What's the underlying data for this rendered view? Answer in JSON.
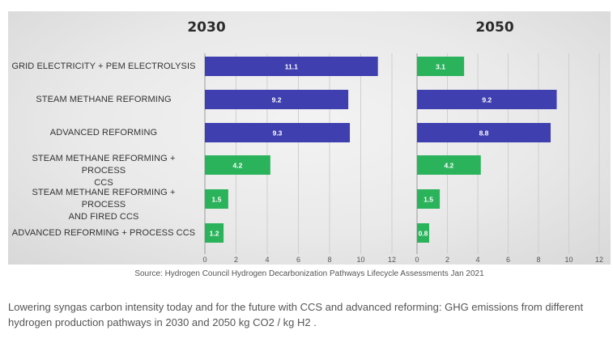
{
  "chart_data": [
    {
      "type": "bar",
      "orientation": "horizontal",
      "title": "2030",
      "categories": [
        "GRID ELECTRICITY + PEM ELECTROLYSIS",
        "STEAM METHANE REFORMING",
        "ADVANCED REFORMING",
        "STEAM METHANE REFORMING + PROCESS CCS",
        "STEAM METHANE REFORMING + PROCESS AND FIRED CCS",
        "ADVANCED REFORMING + PROCESS CCS"
      ],
      "values": [
        11.1,
        9.2,
        9.3,
        4.2,
        1.5,
        1.2
      ],
      "value_labels": [
        "11.1",
        "9.2",
        "9.3",
        "4.2",
        "1.5",
        "1.2"
      ],
      "bar_colors": [
        "#3f3fb0",
        "#3f3fb0",
        "#3f3fb0",
        "#2bb35c",
        "#2bb35c",
        "#2bb35c"
      ],
      "xlim": [
        0,
        12
      ],
      "xticks": [
        "0",
        "2",
        "4",
        "6",
        "8",
        "10",
        "12"
      ],
      "grid": true
    },
    {
      "type": "bar",
      "orientation": "horizontal",
      "title": "2050",
      "categories": [
        "GRID ELECTRICITY + PEM ELECTROLYSIS",
        "STEAM METHANE REFORMING",
        "ADVANCED REFORMING",
        "STEAM METHANE REFORMING + PROCESS CCS",
        "STEAM METHANE REFORMING + PROCESS AND FIRED CCS",
        "ADVANCED REFORMING + PROCESS CCS"
      ],
      "values": [
        3.1,
        9.2,
        8.8,
        4.2,
        1.5,
        0.8
      ],
      "value_labels": [
        "3.1",
        "9.2",
        "8.8",
        "4.2",
        "1.5",
        "0.8"
      ],
      "bar_colors": [
        "#2bb35c",
        "#3f3fb0",
        "#3f3fb0",
        "#2bb35c",
        "#2bb35c",
        "#2bb35c"
      ],
      "xlim": [
        0,
        12
      ],
      "xticks": [
        "0",
        "2",
        "4",
        "6",
        "8",
        "10",
        "12"
      ],
      "grid": true
    }
  ],
  "category_labels": [
    [
      "GRID ELECTRICITY + PEM ELECTROLYSIS"
    ],
    [
      "STEAM METHANE REFORMING"
    ],
    [
      "ADVANCED REFORMING"
    ],
    [
      "STEAM METHANE REFORMING + PROCESS",
      "CCS"
    ],
    [
      "STEAM METHANE REFORMING + PROCESS",
      "AND FIRED CCS"
    ],
    [
      "ADVANCED REFORMING + PROCESS CCS"
    ]
  ],
  "source": "Source: Hydrogen Council Hydrogen Decarbonization Pathways Lifecycle Assessments Jan 2021",
  "caption": "Lowering syngas carbon intensity today and for the future with CCS and advanced reforming: GHG emissions from different hydrogen production pathways in 2030 and 2050 kg CO2 / kg H2 ."
}
